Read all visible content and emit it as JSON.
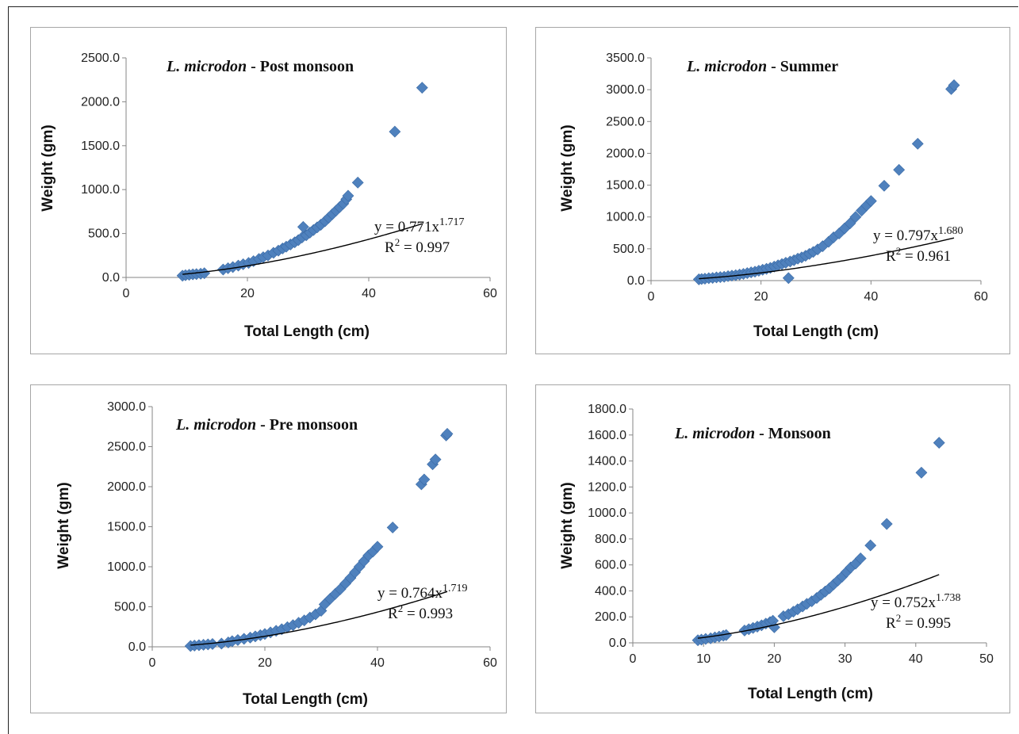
{
  "chart_data": [
    {
      "type": "scatter",
      "title_species": "L. microdon",
      "title_season": " - Post monsoon",
      "xlabel": "Total Length (cm)",
      "ylabel": "Weight (gm)",
      "xlim": [
        0,
        60
      ],
      "ylim": [
        0,
        2500
      ],
      "xticks": [
        "0",
        "20",
        "40",
        "60"
      ],
      "yticks": [
        "0.0",
        "500.0",
        "1000.0",
        "1500.0",
        "2000.0",
        "2500.0"
      ],
      "equation_prefix": "y = 0.771x",
      "equation_exponent": "1.717",
      "r2_prefix": "R",
      "r2_value": " = 0.997",
      "trend": {
        "a": 0.771,
        "b": 1.717
      },
      "marker_color": "#4f81bd",
      "points": [
        [
          9.3,
          20
        ],
        [
          9.8,
          25
        ],
        [
          10.4,
          30
        ],
        [
          11,
          35
        ],
        [
          11.6,
          38
        ],
        [
          12.3,
          42
        ],
        [
          12.9,
          48
        ],
        [
          16,
          90
        ],
        [
          16.8,
          105
        ],
        [
          17.6,
          118
        ],
        [
          18.5,
          135
        ],
        [
          19.3,
          150
        ],
        [
          20.2,
          165
        ],
        [
          21,
          185
        ],
        [
          21.9,
          210
        ],
        [
          22.6,
          230
        ],
        [
          23.4,
          250
        ],
        [
          24.3,
          280
        ],
        [
          25.1,
          305
        ],
        [
          25.8,
          330
        ],
        [
          26.4,
          350
        ],
        [
          27.1,
          375
        ],
        [
          27.8,
          400
        ],
        [
          28.4,
          425
        ],
        [
          29,
          455
        ],
        [
          29.2,
          575
        ],
        [
          29.7,
          480
        ],
        [
          30.3,
          510
        ],
        [
          30.9,
          540
        ],
        [
          31.5,
          570
        ],
        [
          32.1,
          600
        ],
        [
          32.8,
          640
        ],
        [
          33.4,
          680
        ],
        [
          34,
          720
        ],
        [
          34.6,
          760
        ],
        [
          35.2,
          800
        ],
        [
          35.8,
          840
        ],
        [
          36.3,
          890
        ],
        [
          36.6,
          930
        ],
        [
          38.2,
          1080
        ],
        [
          44.3,
          1660
        ],
        [
          48.8,
          2160
        ]
      ]
    },
    {
      "type": "scatter",
      "title_species": "L. microdon",
      "title_season": " - Summer",
      "xlabel": "Total Length (cm)",
      "ylabel": "Weight (gm)",
      "xlim": [
        0,
        60
      ],
      "ylim": [
        0,
        3500
      ],
      "xticks": [
        "0",
        "20",
        "40",
        "60"
      ],
      "yticks": [
        "0.0",
        "500.0",
        "1000.0",
        "1500.0",
        "2000.0",
        "2500.0",
        "3000.0",
        "3500.0"
      ],
      "equation_prefix": "y = 0.797x",
      "equation_exponent": "1.680",
      "r2_prefix": "R",
      "r2_value": " = 0.961",
      "trend": {
        "a": 0.797,
        "b": 1.68
      },
      "marker_color": "#4f81bd",
      "points": [
        [
          8.7,
          20
        ],
        [
          9.2,
          25
        ],
        [
          9.8,
          30
        ],
        [
          10.5,
          38
        ],
        [
          11.2,
          42
        ],
        [
          11.9,
          50
        ],
        [
          12.6,
          55
        ],
        [
          13.3,
          60
        ],
        [
          14,
          70
        ],
        [
          14.7,
          78
        ],
        [
          15.4,
          85
        ],
        [
          16.1,
          95
        ],
        [
          16.8,
          105
        ],
        [
          17.5,
          118
        ],
        [
          18.2,
          130
        ],
        [
          18.9,
          140
        ],
        [
          19.6,
          155
        ],
        [
          20.3,
          170
        ],
        [
          21,
          185
        ],
        [
          21.7,
          200
        ],
        [
          22.4,
          220
        ],
        [
          23.1,
          240
        ],
        [
          23.8,
          260
        ],
        [
          24.5,
          280
        ],
        [
          25,
          40
        ],
        [
          25.3,
          300
        ],
        [
          26,
          320
        ],
        [
          26.7,
          345
        ],
        [
          27.4,
          365
        ],
        [
          28.1,
          390
        ],
        [
          28.8,
          420
        ],
        [
          29.5,
          450
        ],
        [
          30.3,
          490
        ],
        [
          31.2,
          540
        ],
        [
          32.3,
          610
        ],
        [
          33.2,
          680
        ],
        [
          34.2,
          740
        ],
        [
          35.2,
          820
        ],
        [
          36.2,
          900
        ],
        [
          37.2,
          1000
        ],
        [
          38.3,
          1100
        ],
        [
          39.2,
          1180
        ],
        [
          40,
          1250
        ],
        [
          42.4,
          1490
        ],
        [
          45.1,
          1740
        ],
        [
          48.5,
          2150
        ],
        [
          54.6,
          3010
        ],
        [
          55.1,
          3070
        ]
      ]
    },
    {
      "type": "scatter",
      "title_species": "L. microdon",
      "title_season": " - Pre monsoon",
      "xlabel": "Total Length (cm)",
      "ylabel": "Weight (gm)",
      "xlim": [
        0,
        60
      ],
      "ylim": [
        0,
        3000
      ],
      "xticks": [
        "0",
        "20",
        "40",
        "60"
      ],
      "yticks": [
        "0.0",
        "500.0",
        "1000.0",
        "1500.0",
        "2000.0",
        "2500.0",
        "3000.0"
      ],
      "equation_prefix": "y = 0.764x",
      "equation_exponent": "1.719",
      "r2_prefix": "R",
      "r2_value": " = 0.993",
      "trend": {
        "a": 0.764,
        "b": 1.719
      },
      "marker_color": "#4f81bd",
      "points": [
        [
          6.8,
          10
        ],
        [
          7.5,
          15
        ],
        [
          8.3,
          20
        ],
        [
          9.1,
          25
        ],
        [
          9.9,
          30
        ],
        [
          10.7,
          35
        ],
        [
          12.3,
          40
        ],
        [
          13.5,
          55
        ],
        [
          14.2,
          70
        ],
        [
          15.2,
          85
        ],
        [
          16.3,
          100
        ],
        [
          17.4,
          115
        ],
        [
          18.3,
          130
        ],
        [
          19.2,
          145
        ],
        [
          20,
          160
        ],
        [
          21,
          180
        ],
        [
          22,
          200
        ],
        [
          23,
          220
        ],
        [
          24,
          245
        ],
        [
          25,
          270
        ],
        [
          26,
          300
        ],
        [
          27,
          330
        ],
        [
          28,
          365
        ],
        [
          29,
          405
        ],
        [
          30,
          450
        ],
        [
          30.6,
          530
        ],
        [
          31.6,
          600
        ],
        [
          32.5,
          660
        ],
        [
          33.4,
          720
        ],
        [
          34.3,
          790
        ],
        [
          35.2,
          860
        ],
        [
          36,
          930
        ],
        [
          36.8,
          1000
        ],
        [
          37.6,
          1070
        ],
        [
          38.4,
          1140
        ],
        [
          39.2,
          1190
        ],
        [
          40,
          1250
        ],
        [
          42.7,
          1490
        ],
        [
          47.8,
          2030
        ],
        [
          48.3,
          2090
        ],
        [
          49.8,
          2280
        ],
        [
          50.3,
          2340
        ],
        [
          52.2,
          2640
        ],
        [
          52.4,
          2660
        ]
      ]
    },
    {
      "type": "scatter",
      "title_species": "L. microdon",
      "title_season": " - Monsoon",
      "xlabel": "Total Length (cm)",
      "ylabel": "Weight (gm)",
      "xlim": [
        0,
        50
      ],
      "ylim": [
        0,
        1800
      ],
      "xticks": [
        "0",
        "10",
        "20",
        "30",
        "40",
        "50"
      ],
      "yticks": [
        "0.0",
        "200.0",
        "400.0",
        "600.0",
        "800.0",
        "1000.0",
        "1200.0",
        "1400.0",
        "1600.0",
        "1800.0"
      ],
      "equation_prefix": "y = 0.752x",
      "equation_exponent": "1.738",
      "r2_prefix": "R",
      "r2_value": " = 0.995",
      "trend": {
        "a": 0.752,
        "b": 1.738
      },
      "marker_color": "#4f81bd",
      "points": [
        [
          9.2,
          20
        ],
        [
          9.7,
          25
        ],
        [
          10.3,
          30
        ],
        [
          11,
          35
        ],
        [
          11.6,
          42
        ],
        [
          12.2,
          48
        ],
        [
          12.8,
          55
        ],
        [
          13.2,
          60
        ],
        [
          15.8,
          95
        ],
        [
          16.4,
          105
        ],
        [
          17,
          115
        ],
        [
          17.6,
          125
        ],
        [
          18.2,
          135
        ],
        [
          18.8,
          148
        ],
        [
          19.4,
          160
        ],
        [
          19.8,
          170
        ],
        [
          20,
          120
        ],
        [
          21.3,
          205
        ],
        [
          22,
          220
        ],
        [
          22.7,
          240
        ],
        [
          23.3,
          258
        ],
        [
          24,
          280
        ],
        [
          24.6,
          300
        ],
        [
          25.3,
          320
        ],
        [
          26,
          345
        ],
        [
          26.6,
          370
        ],
        [
          27.2,
          395
        ],
        [
          27.8,
          420
        ],
        [
          28.4,
          450
        ],
        [
          29,
          480
        ],
        [
          29.6,
          510
        ],
        [
          30.2,
          545
        ],
        [
          30.8,
          580
        ],
        [
          31.5,
          610
        ],
        [
          32.2,
          650
        ],
        [
          33.6,
          750
        ],
        [
          35.9,
          915
        ],
        [
          40.8,
          1310
        ],
        [
          43.3,
          1540
        ]
      ]
    }
  ]
}
